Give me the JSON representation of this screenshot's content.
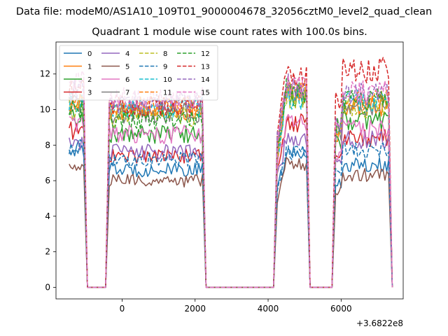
{
  "chart_data": {
    "type": "line",
    "suptitle": "Data file: modeM0/AS1A10_109T01_9000004678_32056cztM0_level2_quad_clean",
    "title": "Quadrant 1 module wise count rates with 100.0s bins.",
    "xlabel": "",
    "ylabel": "",
    "x_offset_label": "+3.6822e8",
    "xlim": [
      -1810,
      7700
    ],
    "ylim": [
      -0.65,
      13.8
    ],
    "xticks": [
      0,
      2000,
      4000,
      6000
    ],
    "xtick_labels": [
      "0",
      "2000",
      "4000",
      "6000"
    ],
    "yticks": [
      0,
      2,
      4,
      6,
      8,
      10,
      12
    ],
    "ytick_labels": [
      "0",
      "2",
      "4",
      "6",
      "8",
      "10",
      "12"
    ],
    "grid": false,
    "legend_location": "upper-left",
    "legend_columns": 4,
    "segments": [
      {
        "x_start": -1450,
        "x_end": -1050,
        "step": 50
      },
      {
        "x_start": -350,
        "x_end": 2200,
        "step": 50
      },
      {
        "x_start": 4250,
        "x_end": 5050,
        "step": 50
      },
      {
        "x_start": 5850,
        "x_end": 7300,
        "step": 50
      }
    ],
    "zero_spans": [
      [
        -850,
        -550
      ],
      [
        2350,
        4150
      ],
      [
        5250,
        5750
      ]
    ],
    "series": [
      {
        "name": "0",
        "color": "#1f77b4",
        "dashed": false,
        "levels": [
          7.8,
          6.6,
          7.5,
          6.9
        ]
      },
      {
        "name": "1",
        "color": "#ff7f0e",
        "dashed": false,
        "levels": [
          10.4,
          10.0,
          11.0,
          10.2
        ]
      },
      {
        "name": "2",
        "color": "#2ca02c",
        "dashed": false,
        "levels": [
          9.6,
          8.6,
          10.8,
          9.4
        ]
      },
      {
        "name": "3",
        "color": "#d62728",
        "dashed": false,
        "levels": [
          8.8,
          7.4,
          9.2,
          8.4
        ]
      },
      {
        "name": "4",
        "color": "#9467bd",
        "dashed": false,
        "levels": [
          8.2,
          7.6,
          8.3,
          8.3
        ]
      },
      {
        "name": "5",
        "color": "#8c564b",
        "dashed": false,
        "levels": [
          6.7,
          6.0,
          6.9,
          6.3
        ]
      },
      {
        "name": "6",
        "color": "#e377c2",
        "dashed": false,
        "levels": [
          9.2,
          8.6,
          9.3,
          8.9
        ]
      },
      {
        "name": "7",
        "color": "#7f7f7f",
        "dashed": false,
        "levels": [
          10.2,
          9.8,
          10.9,
          10.3
        ]
      },
      {
        "name": "8",
        "color": "#bcbd22",
        "dashed": true,
        "levels": [
          10.0,
          9.6,
          10.7,
          10.1
        ]
      },
      {
        "name": "9",
        "color": "#1f77b4",
        "dashed": true,
        "levels": [
          7.9,
          7.2,
          7.6,
          7.7
        ]
      },
      {
        "name": "10",
        "color": "#17becf",
        "dashed": true,
        "levels": [
          10.4,
          10.1,
          10.5,
          10.5
        ]
      },
      {
        "name": "11",
        "color": "#ff7f0e",
        "dashed": true,
        "levels": [
          10.3,
          10.2,
          11.2,
          10.6
        ]
      },
      {
        "name": "12",
        "color": "#2ca02c",
        "dashed": true,
        "levels": [
          10.0,
          9.4,
          11.1,
          10.6
        ]
      },
      {
        "name": "13",
        "color": "#d62728",
        "dashed": true,
        "levels": [
          11.2,
          10.2,
          11.8,
          12.2
        ]
      },
      {
        "name": "14",
        "color": "#9467bd",
        "dashed": true,
        "levels": [
          11.1,
          10.4,
          11.4,
          10.9
        ]
      },
      {
        "name": "15",
        "color": "#e377c2",
        "dashed": true,
        "levels": [
          11.6,
          10.6,
          11.3,
          11.0
        ]
      }
    ]
  }
}
